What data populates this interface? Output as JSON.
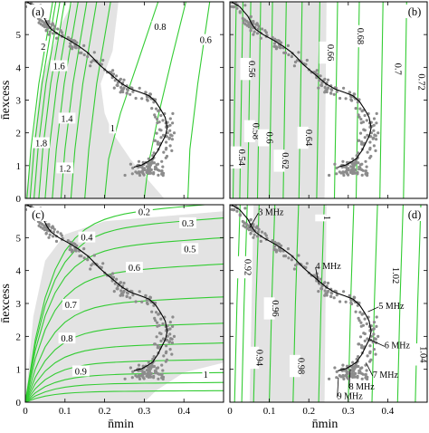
{
  "chart_data": [
    {
      "panel": "a",
      "type": "scatter",
      "panel_label": "(a)",
      "xlim": [
        0,
        0.5
      ],
      "ylim": [
        0,
        6
      ],
      "x_ticks": [
        "0",
        "0.1",
        "0.2",
        "0.3",
        "0.4"
      ],
      "y_ticks": [
        "0",
        "1",
        "2",
        "3",
        "4",
        "5"
      ],
      "x_tick_labels_visible": false,
      "y_tick_labels_visible": true,
      "ylabel": "n̄excess",
      "contour_color": "#33cc33",
      "shaded_region_color": "#e3e3e3",
      "contour_labels": [
        {
          "text": "2",
          "x": 0.045,
          "y": 4.65
        },
        {
          "text": "1.6",
          "x": 0.085,
          "y": 4.05
        },
        {
          "text": "1.4",
          "x": 0.105,
          "y": 2.45
        },
        {
          "text": "1.8",
          "x": 0.04,
          "y": 1.7
        },
        {
          "text": "1.2",
          "x": 0.1,
          "y": 0.93
        },
        {
          "text": "1",
          "x": 0.22,
          "y": 2.15
        },
        {
          "text": "0.8",
          "x": 0.34,
          "y": 5.25
        },
        {
          "text": "0.6",
          "x": 0.455,
          "y": 4.85
        }
      ]
    },
    {
      "panel": "b",
      "type": "scatter",
      "panel_label": "(b)",
      "xlim": [
        0,
        0.5
      ],
      "ylim": [
        0,
        6
      ],
      "x_ticks": [
        "0",
        "0.1",
        "0.2",
        "0.3",
        "0.4"
      ],
      "y_ticks": [
        "0",
        "1",
        "2",
        "3",
        "4",
        "5"
      ],
      "x_tick_labels_visible": false,
      "y_tick_labels_visible": false,
      "contour_labels": [
        {
          "text": "0.56",
          "x": 0.04,
          "y": 3.95
        },
        {
          "text": "0.58",
          "x": 0.05,
          "y": 2.05
        },
        {
          "text": "0.54",
          "x": 0.015,
          "y": 1.25
        },
        {
          "text": "0.6",
          "x": 0.085,
          "y": 1.85
        },
        {
          "text": "0.62",
          "x": 0.125,
          "y": 1.15
        },
        {
          "text": "0.64",
          "x": 0.185,
          "y": 1.85
        },
        {
          "text": "0.66",
          "x": 0.24,
          "y": 4.45
        },
        {
          "text": "0.68",
          "x": 0.315,
          "y": 4.95
        },
        {
          "text": "0.7",
          "x": 0.41,
          "y": 3.95
        },
        {
          "text": "0.72",
          "x": 0.47,
          "y": 3.55
        }
      ]
    },
    {
      "panel": "c",
      "type": "scatter",
      "panel_label": "(c)",
      "xlim": [
        0,
        0.5
      ],
      "ylim": [
        0,
        6
      ],
      "x_ticks": [
        "0",
        "0.1",
        "0.2",
        "0.3",
        "0.4"
      ],
      "y_ticks": [
        "0",
        "1",
        "2",
        "3",
        "4",
        "5"
      ],
      "x_tick_labels_visible": true,
      "y_tick_labels_visible": true,
      "xlabel": "n̄min",
      "ylabel": "n̄excess",
      "contour_labels": [
        {
          "text": "0.2",
          "x": 0.3,
          "y": 5.8
        },
        {
          "text": "0.3",
          "x": 0.41,
          "y": 5.45
        },
        {
          "text": "0.4",
          "x": 0.155,
          "y": 5.02
        },
        {
          "text": "0.5",
          "x": 0.415,
          "y": 4.67
        },
        {
          "text": "0.6",
          "x": 0.275,
          "y": 4.1
        },
        {
          "text": "0.7",
          "x": 0.115,
          "y": 2.97
        },
        {
          "text": "0.8",
          "x": 0.105,
          "y": 1.95
        },
        {
          "text": "0.9",
          "x": 0.14,
          "y": 0.95
        },
        {
          "text": "1",
          "x": 0.455,
          "y": 0.85
        }
      ]
    },
    {
      "panel": "d",
      "type": "scatter",
      "panel_label": "(d)",
      "xlim": [
        0,
        0.5
      ],
      "ylim": [
        0,
        6
      ],
      "x_ticks": [
        "0",
        "0.1",
        "0.2",
        "0.3",
        "0.4"
      ],
      "y_ticks": [
        "0",
        "1",
        "2",
        "3",
        "4",
        "5"
      ],
      "x_tick_labels_visible": true,
      "y_tick_labels_visible": false,
      "xlabel": "n̄min",
      "contour_labels": [
        {
          "text": "0.92",
          "x": 0.03,
          "y": 4.1
        },
        {
          "text": "0.94",
          "x": 0.06,
          "y": 1.35
        },
        {
          "text": "0.96",
          "x": 0.1,
          "y": 2.85
        },
        {
          "text": "0.98",
          "x": 0.165,
          "y": 1.1
        },
        {
          "text": "1",
          "x": 0.23,
          "y": 5.6
        },
        {
          "text": "1.02",
          "x": 0.405,
          "y": 3.85
        },
        {
          "text": "1.04",
          "x": 0.475,
          "y": 1.45
        }
      ],
      "frequency_annotations": [
        {
          "text": "3 MHz",
          "x": 0.095,
          "y": 5.8,
          "to_x": 0.05,
          "to_y": 5.3
        },
        {
          "text": "4 MHz",
          "x": 0.24,
          "y": 4.15,
          "to_x": 0.225,
          "to_y": 3.6
        },
        {
          "text": "5 MHz",
          "x": 0.4,
          "y": 2.95,
          "to_x": 0.35,
          "to_y": 2.75
        },
        {
          "text": "6 MHz",
          "x": 0.415,
          "y": 1.75,
          "to_x": 0.355,
          "to_y": 1.9
        },
        {
          "text": "7 MHz",
          "x": 0.385,
          "y": 0.85,
          "to_x": 0.345,
          "to_y": 1.2
        },
        {
          "text": "8 MHz",
          "x": 0.325,
          "y": 0.5,
          "to_x": 0.305,
          "to_y": 1.0
        },
        {
          "text": "9 MHz",
          "x": 0.295,
          "y": 0.2,
          "to_x": 0.275,
          "to_y": 0.75
        }
      ]
    }
  ]
}
